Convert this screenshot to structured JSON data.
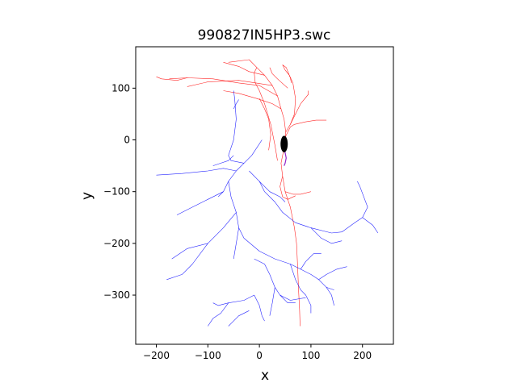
{
  "chart_data": {
    "type": "line",
    "title": "990827IN5HP3.swc",
    "xlabel": "x",
    "ylabel": "y",
    "xlim": [
      -240,
      260
    ],
    "ylim": [
      -395,
      180
    ],
    "xticks": [
      -200,
      -100,
      0,
      100,
      200
    ],
    "yticks": [
      100,
      0,
      -100,
      -200,
      -300
    ],
    "xtick_labels": [
      "−200",
      "−100",
      "0",
      "100",
      "200"
    ],
    "ytick_labels": [
      "100",
      "0",
      "−100",
      "−200",
      "−300"
    ],
    "grid": false,
    "legend": "none",
    "colors": {
      "apical": "#ff0000",
      "basal": "#0000ff",
      "soma": "#000000",
      "axon": "#8000c0"
    },
    "soma": {
      "x": 48,
      "y": -8,
      "rx": 7,
      "ry": 16
    },
    "series": [
      {
        "type": "apical",
        "points": [
          [
            48,
            -8
          ],
          [
            50,
            5
          ],
          [
            51,
            15
          ],
          [
            48,
            40
          ],
          [
            42,
            60
          ],
          [
            35,
            85
          ],
          [
            25,
            105
          ],
          [
            10,
            125
          ],
          [
            -5,
            140
          ],
          [
            -20,
            155
          ],
          [
            -60,
            150
          ]
        ]
      },
      {
        "type": "apical",
        "points": [
          [
            51,
            15
          ],
          [
            60,
            30
          ],
          [
            68,
            50
          ],
          [
            70,
            80
          ],
          [
            65,
            110
          ],
          [
            58,
            125
          ]
        ]
      },
      {
        "type": "apical",
        "points": [
          [
            42,
            60
          ],
          [
            25,
            70
          ],
          [
            -5,
            80
          ],
          [
            -40,
            90
          ],
          [
            -70,
            95
          ]
        ]
      },
      {
        "type": "apical",
        "points": [
          [
            35,
            85
          ],
          [
            0,
            105
          ],
          [
            -40,
            110
          ],
          [
            -90,
            118
          ],
          [
            -140,
            120
          ],
          [
            -175,
            118
          ]
        ]
      },
      {
        "type": "apical",
        "points": [
          [
            -140,
            120
          ],
          [
            -160,
            115
          ],
          [
            -190,
            118
          ],
          [
            -200,
            122
          ]
        ]
      },
      {
        "type": "apical",
        "points": [
          [
            25,
            105
          ],
          [
            -40,
            115
          ],
          [
            -100,
            112
          ],
          [
            -140,
            103
          ]
        ]
      },
      {
        "type": "apical",
        "points": [
          [
            10,
            125
          ],
          [
            -20,
            132
          ],
          [
            -40,
            142
          ],
          [
            -70,
            150
          ]
        ]
      },
      {
        "type": "apical",
        "points": [
          [
            50,
            5
          ],
          [
            60,
            25
          ],
          [
            68,
            30
          ],
          [
            90,
            35
          ],
          [
            110,
            38
          ],
          [
            130,
            38
          ]
        ]
      },
      {
        "type": "apical",
        "points": [
          [
            60,
            30
          ],
          [
            70,
            50
          ],
          [
            80,
            70
          ],
          [
            95,
            88
          ],
          [
            95,
            95
          ]
        ]
      },
      {
        "type": "apical",
        "points": [
          [
            58,
            125
          ],
          [
            50,
            135
          ],
          [
            45,
            145
          ],
          [
            52,
            140
          ],
          [
            60,
            120
          ],
          [
            62,
            110
          ]
        ]
      },
      {
        "type": "apical",
        "points": [
          [
            20,
            140
          ],
          [
            25,
            128
          ],
          [
            35,
            118
          ],
          [
            55,
            100
          ]
        ]
      },
      {
        "type": "apical",
        "points": [
          [
            0,
            80
          ],
          [
            10,
            60
          ],
          [
            18,
            40
          ],
          [
            22,
            10
          ],
          [
            18,
            -20
          ]
        ]
      },
      {
        "type": "apical",
        "points": [
          [
            48,
            -8
          ],
          [
            46,
            -25
          ],
          [
            42,
            -45
          ],
          [
            45,
            -70
          ],
          [
            50,
            -100
          ],
          [
            60,
            -130
          ],
          [
            68,
            -170
          ],
          [
            72,
            -200
          ],
          [
            74,
            -240
          ],
          [
            76,
            -290
          ],
          [
            78,
            -330
          ],
          [
            79,
            -360
          ]
        ]
      },
      {
        "type": "apical",
        "points": [
          [
            45,
            -70
          ],
          [
            40,
            -90
          ],
          [
            45,
            -110
          ],
          [
            55,
            -115
          ],
          [
            70,
            -108
          ]
        ]
      },
      {
        "type": "apical",
        "points": [
          [
            50,
            -100
          ],
          [
            65,
            -105
          ],
          [
            80,
            -105
          ],
          [
            100,
            -100
          ]
        ]
      },
      {
        "type": "apical",
        "points": [
          [
            -5,
            140
          ],
          [
            -10,
            130
          ],
          [
            -8,
            110
          ],
          [
            0,
            95
          ],
          [
            10,
            70
          ],
          [
            22,
            30
          ],
          [
            30,
            -10
          ],
          [
            35,
            -40
          ]
        ]
      },
      {
        "type": "basal",
        "points": [
          [
            5,
            0
          ],
          [
            -15,
            -30
          ],
          [
            -30,
            -45
          ],
          [
            -45,
            -60
          ],
          [
            -60,
            -80
          ],
          [
            -70,
            -100
          ],
          [
            -80,
            -110
          ]
        ]
      },
      {
        "type": "basal",
        "points": [
          [
            -45,
            -60
          ],
          [
            -70,
            -55
          ],
          [
            -100,
            -60
          ],
          [
            -150,
            -65
          ],
          [
            -200,
            -68
          ]
        ]
      },
      {
        "type": "basal",
        "points": [
          [
            -30,
            -45
          ],
          [
            -55,
            -40
          ],
          [
            -60,
            -30
          ],
          [
            -50,
            0
          ],
          [
            -45,
            40
          ],
          [
            -48,
            80
          ],
          [
            -50,
            95
          ]
        ]
      },
      {
        "type": "basal",
        "points": [
          [
            -60,
            -80
          ],
          [
            -55,
            -110
          ],
          [
            -45,
            -140
          ],
          [
            -40,
            -170
          ],
          [
            -45,
            -200
          ],
          [
            -50,
            -230
          ]
        ]
      },
      {
        "type": "basal",
        "points": [
          [
            -70,
            -100
          ],
          [
            -100,
            -115
          ],
          [
            -130,
            -130
          ],
          [
            -160,
            -145
          ]
        ]
      },
      {
        "type": "basal",
        "points": [
          [
            -45,
            -140
          ],
          [
            -70,
            -170
          ],
          [
            -100,
            -200
          ],
          [
            -140,
            -210
          ],
          [
            -170,
            -230
          ]
        ]
      },
      {
        "type": "basal",
        "points": [
          [
            -40,
            -170
          ],
          [
            -30,
            -190
          ],
          [
            0,
            -215
          ],
          [
            30,
            -230
          ],
          [
            60,
            -240
          ]
        ]
      },
      {
        "type": "basal",
        "points": [
          [
            -100,
            -200
          ],
          [
            -130,
            -240
          ],
          [
            -150,
            -260
          ],
          [
            -180,
            -270
          ]
        ]
      },
      {
        "type": "basal",
        "points": [
          [
            -20,
            -60
          ],
          [
            0,
            -80
          ],
          [
            20,
            -100
          ],
          [
            40,
            -110
          ],
          [
            50,
            -120
          ]
        ]
      },
      {
        "type": "basal",
        "points": [
          [
            0,
            -80
          ],
          [
            10,
            -100
          ],
          [
            30,
            -120
          ],
          [
            45,
            -140
          ],
          [
            70,
            -160
          ],
          [
            100,
            -170
          ],
          [
            140,
            -180
          ]
        ]
      },
      {
        "type": "basal",
        "points": [
          [
            140,
            -180
          ],
          [
            160,
            -178
          ],
          [
            185,
            -160
          ],
          [
            200,
            -150
          ],
          [
            210,
            -130
          ],
          [
            195,
            -90
          ],
          [
            190,
            -80
          ]
        ]
      },
      {
        "type": "basal",
        "points": [
          [
            200,
            -150
          ],
          [
            220,
            -165
          ],
          [
            230,
            -180
          ]
        ]
      },
      {
        "type": "basal",
        "points": [
          [
            100,
            -170
          ],
          [
            120,
            -190
          ],
          [
            140,
            -200
          ],
          [
            160,
            -195
          ]
        ]
      },
      {
        "type": "basal",
        "points": [
          [
            20,
            -260
          ],
          [
            30,
            -285
          ],
          [
            40,
            -300
          ],
          [
            60,
            -310
          ],
          [
            90,
            -305
          ]
        ]
      },
      {
        "type": "basal",
        "points": [
          [
            30,
            -285
          ],
          [
            25,
            -315
          ],
          [
            20,
            -340
          ]
        ]
      },
      {
        "type": "basal",
        "points": [
          [
            40,
            -300
          ],
          [
            55,
            -315
          ],
          [
            70,
            -315
          ]
        ]
      },
      {
        "type": "basal",
        "points": [
          [
            60,
            -240
          ],
          [
            80,
            -250
          ],
          [
            100,
            -260
          ],
          [
            115,
            -270
          ],
          [
            130,
            -285
          ],
          [
            145,
            -290
          ]
        ]
      },
      {
        "type": "basal",
        "points": [
          [
            80,
            -250
          ],
          [
            90,
            -235
          ],
          [
            105,
            -220
          ],
          [
            120,
            -220
          ]
        ]
      },
      {
        "type": "basal",
        "points": [
          [
            115,
            -270
          ],
          [
            130,
            -260
          ],
          [
            150,
            -250
          ],
          [
            170,
            -245
          ]
        ]
      },
      {
        "type": "basal",
        "points": [
          [
            60,
            -240
          ],
          [
            70,
            -270
          ],
          [
            80,
            -290
          ],
          [
            90,
            -300
          ]
        ]
      },
      {
        "type": "basal",
        "points": [
          [
            90,
            -300
          ],
          [
            100,
            -320
          ],
          [
            100,
            -335
          ]
        ]
      },
      {
        "type": "basal",
        "points": [
          [
            -10,
            -300
          ],
          [
            -30,
            -310
          ],
          [
            -60,
            -315
          ],
          [
            -80,
            -320
          ],
          [
            -90,
            -315
          ]
        ]
      },
      {
        "type": "basal",
        "points": [
          [
            -60,
            -315
          ],
          [
            -75,
            -335
          ],
          [
            -90,
            -345
          ],
          [
            -100,
            -360
          ]
        ]
      },
      {
        "type": "basal",
        "points": [
          [
            -10,
            -300
          ],
          [
            0,
            -320
          ],
          [
            5,
            -340
          ],
          [
            10,
            -350
          ]
        ]
      },
      {
        "type": "basal",
        "points": [
          [
            -20,
            -330
          ],
          [
            -40,
            -340
          ],
          [
            -55,
            -355
          ],
          [
            -60,
            -360
          ]
        ]
      },
      {
        "type": "basal",
        "points": [
          [
            20,
            -260
          ],
          [
            10,
            -240
          ],
          [
            -10,
            -230
          ]
        ]
      },
      {
        "type": "basal",
        "points": [
          [
            -50,
            -30
          ],
          [
            -60,
            -40
          ],
          [
            -75,
            -45
          ],
          [
            -90,
            -50
          ]
        ]
      },
      {
        "type": "basal",
        "points": [
          [
            -50,
            60
          ],
          [
            -45,
            70
          ],
          [
            -40,
            78
          ]
        ]
      },
      {
        "type": "basal",
        "points": [
          [
            130,
            -285
          ],
          [
            140,
            -300
          ],
          [
            145,
            -320
          ]
        ]
      },
      {
        "type": "axon",
        "points": [
          [
            48,
            -15
          ],
          [
            50,
            -25
          ],
          [
            52,
            -35
          ],
          [
            50,
            -45
          ],
          [
            48,
            -50
          ]
        ]
      }
    ]
  }
}
